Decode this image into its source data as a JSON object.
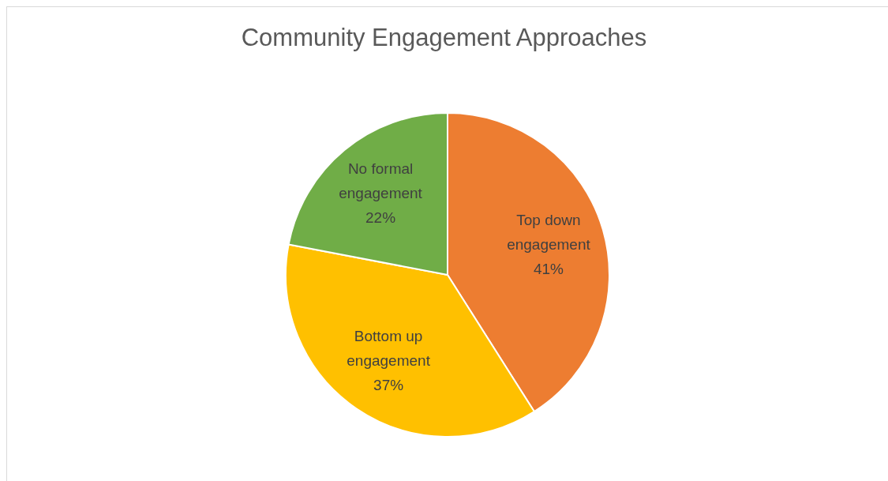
{
  "chart_data": {
    "type": "pie",
    "title": "Community Engagement Approaches",
    "categories": [
      "Top down engagement",
      "Bottom up engagement",
      "No formal engagement"
    ],
    "values": [
      41,
      37,
      22
    ],
    "colors": [
      "#ed7d31",
      "#ffc000",
      "#70ad47"
    ],
    "value_labels": [
      "41%",
      "37%",
      "22%"
    ],
    "legend": false
  }
}
